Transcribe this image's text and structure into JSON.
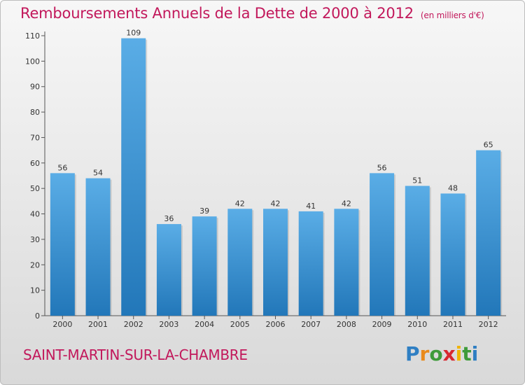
{
  "chart_data": {
    "type": "bar",
    "title": "Remboursements Annuels de la Dette de 2000 à 2012",
    "subtitle": "(en milliers d'€)",
    "xlabel": "",
    "ylabel": "",
    "categories": [
      "2000",
      "2001",
      "2002",
      "2003",
      "2004",
      "2005",
      "2006",
      "2007",
      "2008",
      "2009",
      "2010",
      "2011",
      "2012"
    ],
    "values": [
      56,
      54,
      109,
      36,
      39,
      42,
      42,
      41,
      42,
      56,
      51,
      48,
      65
    ],
    "ylim": [
      0,
      110
    ],
    "yticks": [
      0,
      10,
      20,
      30,
      40,
      50,
      60,
      70,
      80,
      90,
      100,
      110
    ],
    "grid": false,
    "colors": {
      "bar_top": "#5aade6",
      "bar_bottom": "#2277b9",
      "title": "#c2185b"
    }
  },
  "footer": {
    "commune": "SAINT-MARTIN-SUR-LA-CHAMBRE",
    "logo_letters": [
      "P",
      "r",
      "o",
      "x",
      "i",
      "t",
      "i"
    ],
    "logo_colors": [
      "#2f7fc3",
      "#e98a1b",
      "#3e9b3a",
      "#d8282f",
      "#f0b400",
      "#3e9b3a",
      "#2f7fc3"
    ]
  }
}
